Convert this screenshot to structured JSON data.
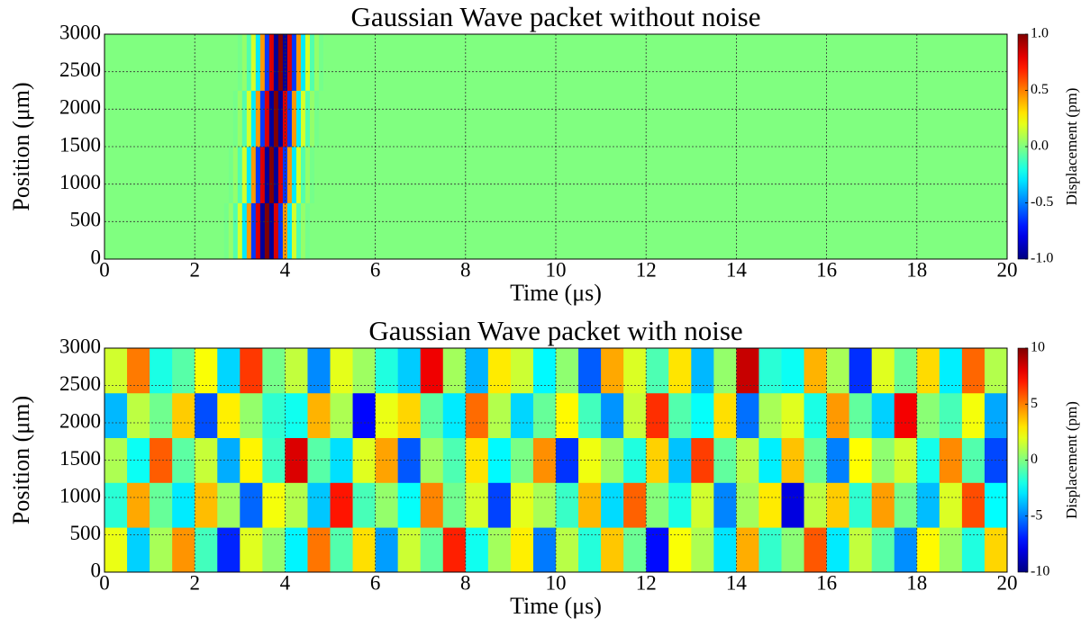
{
  "chart_data": [
    {
      "type": "heatmap",
      "title": "Gaussian Wave packet without noise",
      "xlabel": "Time (μs)",
      "ylabel": "Position (μm)",
      "colorbar_label": "Displacement (pm)",
      "x": [
        2.6,
        2.7,
        2.8,
        2.9,
        3.0,
        3.1,
        3.2,
        3.3,
        3.4,
        3.5,
        3.6,
        3.7,
        3.8,
        3.9,
        4.0,
        4.1,
        4.2,
        4.3,
        4.4,
        4.5,
        4.6,
        4.7,
        4.8,
        4.9,
        5.0
      ],
      "y": [
        375,
        1125,
        1875,
        2625
      ],
      "z": [
        [
          0,
          -0.02,
          0.04,
          -0.09,
          0.17,
          -0.29,
          0.45,
          -0.64,
          0.82,
          -0.95,
          1,
          -0.95,
          0.82,
          -0.64,
          0.45,
          -0.29,
          0.17,
          -0.09,
          0.04,
          -0.02,
          0,
          0,
          0,
          0,
          0
        ],
        [
          0,
          0,
          -0.02,
          0.04,
          -0.09,
          0.17,
          -0.29,
          0.45,
          -0.64,
          0.82,
          -0.95,
          1,
          -0.95,
          0.82,
          -0.64,
          0.45,
          -0.29,
          0.17,
          -0.09,
          0.04,
          -0.02,
          0,
          0,
          0,
          0
        ],
        [
          0,
          0,
          0,
          -0.02,
          0.04,
          -0.09,
          0.17,
          -0.29,
          0.45,
          -0.64,
          0.82,
          -0.95,
          1,
          -0.95,
          0.82,
          -0.64,
          0.45,
          -0.29,
          0.17,
          -0.09,
          0.04,
          -0.02,
          0,
          0,
          0
        ],
        [
          0,
          0,
          0,
          0,
          -0.02,
          0.04,
          -0.09,
          0.17,
          -0.29,
          0.45,
          -0.64,
          0.82,
          -0.95,
          1,
          -0.95,
          0.82,
          -0.64,
          0.45,
          -0.29,
          0.17,
          -0.09,
          0.04,
          -0.02,
          0,
          0
        ]
      ],
      "xlim": [
        0,
        20
      ],
      "ylim": [
        0,
        3000
      ],
      "xticks": [
        0,
        2,
        4,
        6,
        8,
        10,
        12,
        14,
        16,
        18,
        20
      ],
      "yticks": [
        0,
        500,
        1000,
        1500,
        2000,
        2500,
        3000
      ],
      "clim": [
        -1,
        1
      ],
      "cticks": [
        {
          "value": -1,
          "label": "-1.0"
        },
        {
          "value": -0.5,
          "label": "-0.5"
        },
        {
          "value": 0,
          "label": "0.0"
        },
        {
          "value": 0.5,
          "label": "0.5"
        },
        {
          "value": 1,
          "label": "1.0"
        }
      ],
      "colormap": "jet",
      "grid": true
    },
    {
      "type": "heatmap",
      "title": "Gaussian Wave packet with noise",
      "xlabel": "Time (μs)",
      "ylabel": "Position (μm)",
      "colorbar_label": "Displacement (pm)",
      "x": [
        0.25,
        0.75,
        1.25,
        1.75,
        2.25,
        2.75,
        3.25,
        3.75,
        4.25,
        4.75,
        5.25,
        5.75,
        6.25,
        6.75,
        7.25,
        7.75,
        8.25,
        8.75,
        9.25,
        9.75,
        10.25,
        10.75,
        11.25,
        11.75,
        12.25,
        12.75,
        13.25,
        13.75,
        14.25,
        14.75,
        15.25,
        15.75,
        16.25,
        16.75,
        17.25,
        17.75,
        18.25,
        18.75,
        19.25,
        19.75
      ],
      "y": [
        300,
        900,
        1500,
        2100,
        2700
      ],
      "z": [
        [
          2.1,
          -3.4,
          0.8,
          4.6,
          -1.2,
          -6.8,
          1.9,
          0.3,
          -2.7,
          5.2,
          -0.9,
          3.1,
          -4.4,
          1.5,
          -0.6,
          6.9,
          -2.2,
          0.7,
          2.8,
          -5.1,
          1.1,
          -1.8,
          3.6,
          -0.4,
          -7.3,
          2.4,
          0.9,
          -3.0,
          4.1,
          -1.5,
          0.2,
          5.8,
          -2.9,
          1.3,
          -0.8,
          -4.7,
          2.6,
          0.5,
          -1.9,
          3.3
        ],
        [
          -1.7,
          4.2,
          -0.5,
          -2.9,
          3.8,
          0.6,
          -5.5,
          2.3,
          1.0,
          -3.6,
          7.1,
          -1.1,
          0.4,
          -2.4,
          4.9,
          -0.3,
          1.7,
          -6.2,
          2.0,
          0.8,
          -1.4,
          3.9,
          -3.2,
          5.6,
          0.1,
          -2.0,
          1.6,
          -4.9,
          0.7,
          2.9,
          -8.1,
          1.2,
          3.5,
          -1.6,
          4.4,
          -0.2,
          -3.8,
          1.8,
          6.0,
          -2.5
        ],
        [
          0.9,
          -2.3,
          5.7,
          -0.7,
          1.4,
          -4.1,
          2.7,
          -1.3,
          8.2,
          -0.8,
          -3.1,
          1.9,
          4.3,
          -5.8,
          0.6,
          -1.0,
          3.0,
          -2.6,
          -0.1,
          4.7,
          -6.5,
          2.2,
          0.5,
          -1.9,
          3.4,
          -3.7,
          6.3,
          -0.6,
          1.1,
          -2.8,
          3.7,
          -0.4,
          -5.0,
          2.5,
          0.3,
          1.6,
          -2.1,
          4.8,
          -0.9,
          -6.1
        ],
        [
          -3.9,
          1.2,
          -0.3,
          3.5,
          -6.0,
          2.8,
          0.4,
          -1.6,
          -2.2,
          4.0,
          0.9,
          -7.4,
          2.1,
          3.3,
          -0.7,
          -2.9,
          5.4,
          1.0,
          -3.3,
          -0.5,
          2.6,
          -1.2,
          -4.6,
          1.4,
          6.6,
          -0.9,
          -2.4,
          3.1,
          -5.3,
          0.8,
          1.9,
          -2.0,
          4.5,
          -0.6,
          -3.4,
          7.7,
          0.2,
          -1.1,
          2.3,
          -4.2
        ],
        [
          1.6,
          5.1,
          -2.0,
          -0.8,
          2.4,
          -3.3,
          6.4,
          -0.2,
          1.3,
          -4.8,
          2.0,
          0.6,
          -1.9,
          -3.5,
          7.8,
          0.7,
          -4.0,
          2.9,
          1.5,
          -2.6,
          0.3,
          -5.7,
          4.2,
          1.8,
          -1.0,
          3.0,
          -3.9,
          0.4,
          8.6,
          -1.7,
          -2.3,
          4.0,
          0.8,
          -6.6,
          1.9,
          -0.4,
          3.2,
          -2.8,
          5.5,
          1.0
        ]
      ],
      "xlim": [
        0,
        20
      ],
      "ylim": [
        0,
        3000
      ],
      "xticks": [
        0,
        2,
        4,
        6,
        8,
        10,
        12,
        14,
        16,
        18,
        20
      ],
      "yticks": [
        0,
        500,
        1000,
        1500,
        2000,
        2500,
        3000
      ],
      "clim": [
        -10,
        10
      ],
      "cticks": [
        -10,
        -5,
        0,
        5,
        10
      ],
      "colormap": "jet",
      "grid": true
    }
  ]
}
